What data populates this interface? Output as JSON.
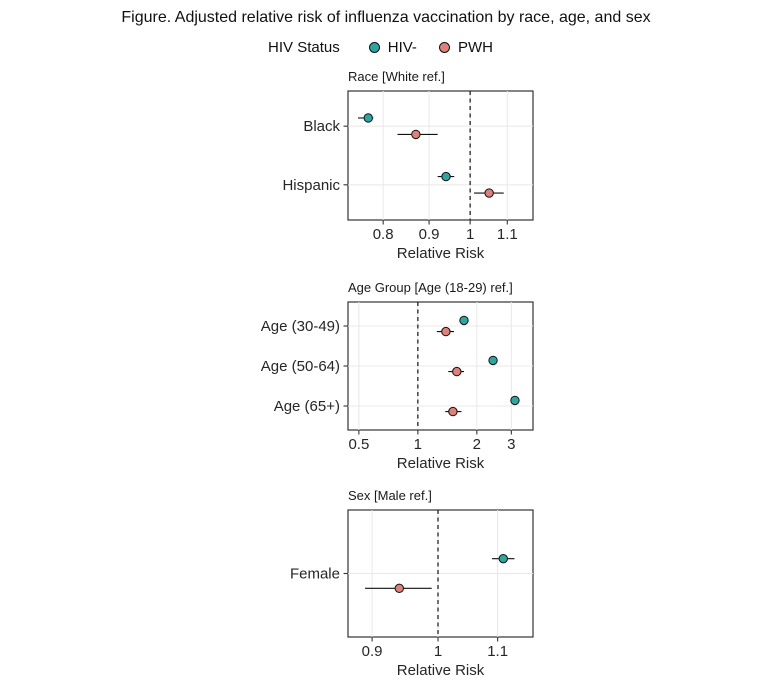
{
  "figure": {
    "title": "Figure. Adjusted relative risk of influenza vaccination by race, age, and sex"
  },
  "legend": {
    "title": "HIV Status",
    "items": [
      {
        "label": "HIV-",
        "color": "#2AA7A3"
      },
      {
        "label": "PWH",
        "color": "#E08078"
      }
    ]
  },
  "chart_data": [
    {
      "type": "scatter",
      "title": "Race [White ref.]",
      "xlabel": "Relative Risk",
      "x_scale": "log",
      "xlim": [
        0.731,
        1.175
      ],
      "x_ticks": [
        0.8,
        0.9,
        1,
        1.1
      ],
      "x_tick_labels": [
        "0.8",
        "0.9",
        "1",
        "1.1"
      ],
      "ref_line": 1,
      "grid": true,
      "categories": [
        "Black",
        "Hispanic"
      ],
      "series": [
        {
          "name": "HIV-",
          "color": "#2AA7A3",
          "points": [
            {
              "value": 0.77,
              "lo": 0.75,
              "hi": 0.78
            },
            {
              "value": 0.94,
              "lo": 0.92,
              "hi": 0.96
            }
          ]
        },
        {
          "name": "PWH",
          "color": "#E08078",
          "points": [
            {
              "value": 0.87,
              "lo": 0.83,
              "hi": 0.92
            },
            {
              "value": 1.05,
              "lo": 1.01,
              "hi": 1.09
            }
          ]
        }
      ]
    },
    {
      "type": "scatter",
      "title": "Age Group [Age (18-29) ref.]",
      "xlabel": "Relative Risk",
      "x_scale": "log",
      "xlim": [
        0.44,
        3.87
      ],
      "x_ticks": [
        0.5,
        1,
        2,
        3
      ],
      "x_tick_labels": [
        "0.5",
        "1",
        "2",
        "3"
      ],
      "ref_line": 1,
      "grid": true,
      "categories": [
        "Age (30-49)",
        "Age (50-64)",
        "Age (65+)"
      ],
      "series": [
        {
          "name": "HIV-",
          "color": "#2AA7A3",
          "points": [
            {
              "value": 1.72,
              "lo": 1.68,
              "hi": 1.76
            },
            {
              "value": 2.42,
              "lo": 2.36,
              "hi": 2.48
            },
            {
              "value": 3.13,
              "lo": 3.04,
              "hi": 3.22
            }
          ]
        },
        {
          "name": "PWH",
          "color": "#E08078",
          "points": [
            {
              "value": 1.39,
              "lo": 1.25,
              "hi": 1.53
            },
            {
              "value": 1.58,
              "lo": 1.43,
              "hi": 1.72
            },
            {
              "value": 1.51,
              "lo": 1.38,
              "hi": 1.67
            }
          ]
        }
      ]
    },
    {
      "type": "scatter",
      "title": "Sex [Male ref.]",
      "xlabel": "Relative Risk",
      "x_scale": "log",
      "xlim": [
        0.866,
        1.164
      ],
      "x_ticks": [
        0.9,
        1,
        1.1
      ],
      "x_tick_labels": [
        "0.9",
        "1",
        "1.1"
      ],
      "ref_line": 1,
      "grid": true,
      "categories": [
        "Female"
      ],
      "series": [
        {
          "name": "HIV-",
          "color": "#2AA7A3",
          "points": [
            {
              "value": 1.11,
              "lo": 1.09,
              "hi": 1.13
            }
          ]
        },
        {
          "name": "PWH",
          "color": "#E08078",
          "points": [
            {
              "value": 0.94,
              "lo": 0.89,
              "hi": 0.99
            }
          ]
        }
      ]
    }
  ],
  "colors": {
    "hiv_negative": "#2AA7A3",
    "pwh": "#E08078",
    "panel_border": "#333333",
    "gridline": "#E8E8E8",
    "text": "#262626"
  }
}
